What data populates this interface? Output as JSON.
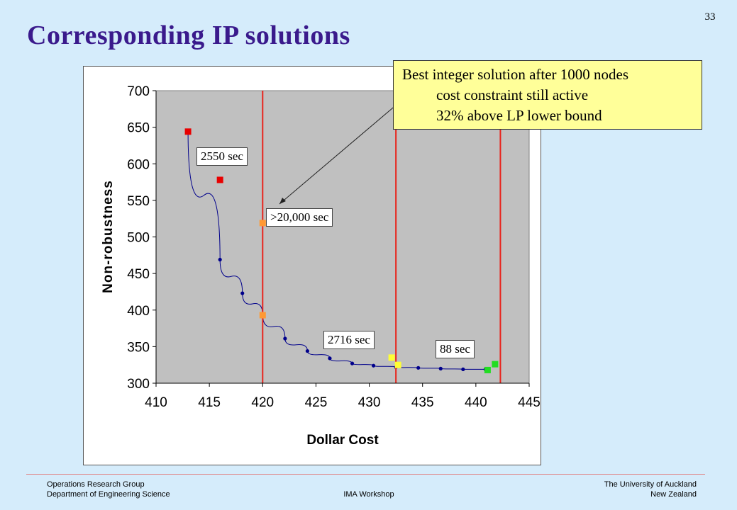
{
  "slide": {
    "number": "33",
    "title": "Corresponding IP solutions"
  },
  "footer": {
    "left_line1": "Operations Research Group",
    "left_line2": "Department of Engineering Science",
    "center": "IMA Workshop",
    "right_line1": "The University of Auckland",
    "right_line2": "New Zealand"
  },
  "callout": {
    "line1": "Best integer solution after 1000 nodes",
    "line2": "cost constraint still active",
    "line3": "32% above LP lower bound"
  },
  "annotations": {
    "time_2550": "2550 sec",
    "time_20000": ">20,000 sec",
    "time_2716": "2716 sec",
    "time_88": "88 sec"
  },
  "colors": {
    "background": "#d5ecfb",
    "title": "#3a1a8c",
    "plot_area": "#c0c0c0",
    "frontier": "#00008b",
    "cost_lines": "#e8231c",
    "red_points": "#e80000",
    "orange_points": "#ff9933",
    "yellow_points": "#ffff33",
    "green_points": "#22dd22",
    "callout_bg": "#ffff99"
  },
  "chart_data": {
    "type": "scatter",
    "xlabel": "Dollar Cost",
    "ylabel": "Non-robustness",
    "xlim": [
      410,
      445
    ],
    "ylim": [
      300,
      700
    ],
    "xticks": [
      410,
      415,
      420,
      425,
      430,
      435,
      440,
      445
    ],
    "yticks": [
      300,
      350,
      400,
      450,
      500,
      550,
      600,
      650,
      700
    ],
    "grid": false,
    "legend": "none",
    "cost_constraint_lines_x": [
      420,
      432.5,
      442.3
    ],
    "series": [
      {
        "style": "line",
        "color": "#00008b",
        "x": [
          413,
          416,
          418.1,
          420,
          422.1,
          424.2,
          426.3,
          428.4,
          430.4,
          432.5,
          434.6,
          436.7,
          438.8,
          440.9
        ],
        "y": [
          645,
          469,
          423,
          394,
          361,
          344,
          334,
          327,
          324,
          322,
          321,
          320,
          319,
          319
        ]
      },
      {
        "style": "markers",
        "color": "#e80000",
        "x": [
          413,
          416
        ],
        "y": [
          644,
          578
        ]
      },
      {
        "style": "markers",
        "color": "#ff9933",
        "x": [
          420,
          420
        ],
        "y": [
          519,
          393
        ]
      },
      {
        "style": "markers",
        "color": "#ffff33",
        "x": [
          432.1,
          432.7
        ],
        "y": [
          335,
          325
        ]
      },
      {
        "style": "markers",
        "color": "#22dd22",
        "x": [
          441.8,
          441.1
        ],
        "y": [
          326,
          318
        ]
      }
    ]
  }
}
